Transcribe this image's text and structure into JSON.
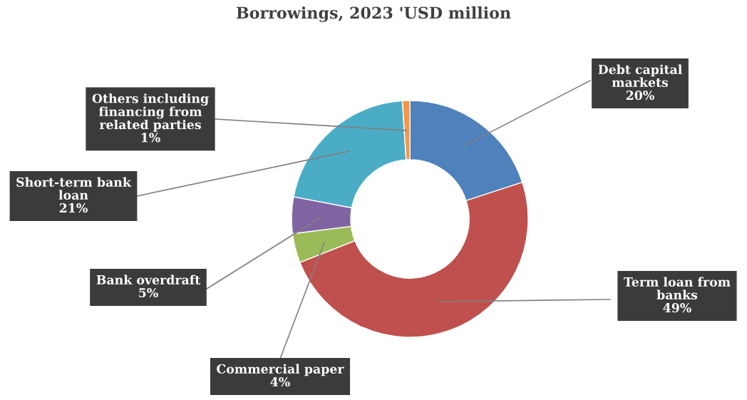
{
  "chart_data": {
    "type": "donut",
    "title": "Borrowings, 2023 'USD million",
    "categories": [
      "Debt capital\nmarkets",
      "Term loan from\nbanks",
      "Commercial paper",
      "Bank overdraft",
      "Short-term bank\nloan",
      "Others including\nfinancing from\nrelated parties"
    ],
    "values": [
      20,
      49,
      4,
      5,
      21,
      1
    ],
    "colors": [
      "#4f81bd",
      "#c0504d",
      "#9bbb59",
      "#8064a2",
      "#4bacc6",
      "#f79646"
    ],
    "value_labels": [
      "20%",
      "49%",
      "4%",
      "5%",
      "21%",
      "1%"
    ],
    "legend": false
  }
}
